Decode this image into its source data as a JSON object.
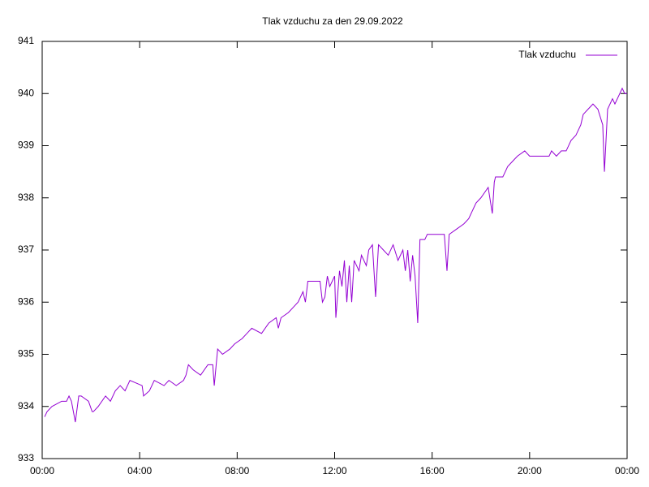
{
  "chart_data": {
    "type": "line",
    "title": "Tlak vzduchu za den 29.09.2022",
    "x": [
      0.1,
      0.2,
      0.4,
      0.8,
      1.0,
      1.1,
      1.2,
      1.36,
      1.5,
      1.6,
      1.9,
      2.05,
      2.1,
      2.3,
      2.6,
      2.8,
      3.0,
      3.2,
      3.4,
      3.6,
      4.1,
      4.16,
      4.4,
      4.6,
      5.0,
      5.2,
      5.5,
      5.8,
      5.9,
      6.0,
      6.2,
      6.5,
      6.8,
      7.0,
      7.06,
      7.2,
      7.4,
      7.7,
      7.9,
      8.2,
      8.4,
      8.6,
      9.0,
      9.3,
      9.6,
      9.69,
      9.8,
      10.1,
      10.3,
      10.5,
      10.7,
      10.8,
      10.9,
      11.4,
      11.5,
      11.6,
      11.7,
      11.8,
      12.0,
      12.05,
      12.2,
      12.3,
      12.4,
      12.5,
      12.6,
      12.7,
      12.8,
      13.0,
      13.1,
      13.3,
      13.4,
      13.55,
      13.68,
      13.8,
      14.0,
      14.2,
      14.4,
      14.6,
      14.8,
      14.9,
      15.0,
      15.1,
      15.2,
      15.3,
      15.41,
      15.5,
      15.7,
      15.8,
      16.5,
      16.61,
      16.7,
      17.0,
      17.3,
      17.5,
      17.8,
      18.0,
      18.3,
      18.47,
      18.55,
      18.6,
      18.9,
      19.1,
      19.3,
      19.5,
      19.8,
      20.0,
      20.8,
      20.9,
      21.1,
      21.3,
      21.5,
      21.7,
      21.9,
      22.1,
      22.2,
      22.4,
      22.6,
      22.8,
      23.0,
      23.07,
      23.2,
      23.4,
      23.5,
      23.7,
      23.8,
      23.9,
      24.0
    ],
    "series": [
      {
        "name": "Tlak vzduchu",
        "color": "#9400d3",
        "values": [
          933.8,
          933.9,
          934.0,
          934.1,
          934.1,
          934.2,
          934.1,
          933.7,
          934.2,
          934.2,
          934.1,
          933.9,
          933.9,
          934.0,
          934.2,
          934.1,
          934.3,
          934.4,
          934.3,
          934.5,
          934.4,
          934.2,
          934.3,
          934.5,
          934.4,
          934.5,
          934.4,
          934.5,
          934.6,
          934.8,
          934.7,
          934.6,
          934.8,
          934.8,
          934.4,
          935.1,
          935.0,
          935.1,
          935.2,
          935.3,
          935.4,
          935.5,
          935.4,
          935.6,
          935.7,
          935.5,
          935.7,
          935.8,
          935.9,
          936.0,
          936.2,
          936.0,
          936.4,
          936.4,
          936.0,
          936.1,
          936.5,
          936.3,
          936.5,
          935.7,
          936.6,
          936.3,
          936.8,
          936.0,
          936.7,
          936.0,
          936.8,
          936.6,
          936.9,
          936.7,
          937.0,
          937.1,
          936.1,
          937.1,
          937.0,
          936.9,
          937.1,
          936.8,
          937.0,
          936.6,
          937.0,
          936.4,
          936.9,
          936.5,
          935.6,
          937.2,
          937.2,
          937.3,
          937.3,
          936.6,
          937.3,
          937.4,
          937.5,
          937.6,
          937.9,
          938.0,
          938.2,
          937.7,
          938.3,
          938.4,
          938.4,
          938.6,
          938.7,
          938.8,
          938.9,
          938.8,
          938.8,
          938.9,
          938.8,
          938.9,
          938.9,
          939.1,
          939.2,
          939.4,
          939.6,
          939.7,
          939.8,
          939.7,
          939.4,
          938.5,
          939.7,
          939.9,
          939.8,
          940.0,
          940.1,
          940.0,
          940.0
        ]
      }
    ],
    "xlim": [
      0,
      24
    ],
    "xticks": [
      {
        "value": 0,
        "label": "00:00"
      },
      {
        "value": 4,
        "label": "04:00"
      },
      {
        "value": 8,
        "label": "08:00"
      },
      {
        "value": 12,
        "label": "12:00"
      },
      {
        "value": 16,
        "label": "16:00"
      },
      {
        "value": 20,
        "label": "20:00"
      },
      {
        "value": 24,
        "label": "00:00"
      }
    ],
    "ylim": [
      933,
      941
    ],
    "yticks": [
      933,
      934,
      935,
      936,
      937,
      938,
      939,
      940,
      941
    ],
    "grid": false,
    "legend": "top-right"
  }
}
